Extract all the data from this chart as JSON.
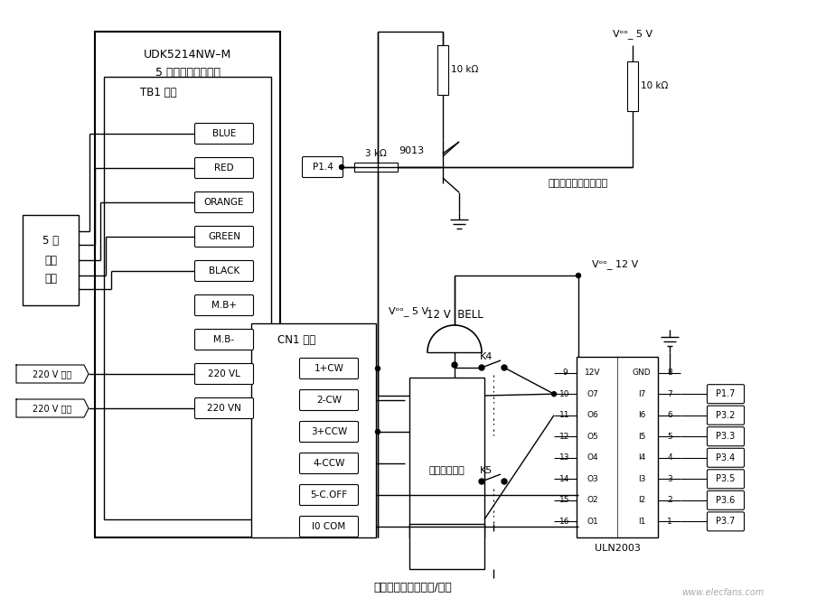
{
  "bg_color": "#ffffff",
  "tb1_pins": [
    "BLUE",
    "RED",
    "ORANGE",
    "GREEN",
    "BLACK",
    "M.B+",
    "M.B-",
    "220 VL",
    "220 VN"
  ],
  "cn1_pins": [
    "1+CW",
    "2-CW",
    "3+CCW",
    "4-CCW",
    "5-C.OFF",
    "I0 COM"
  ],
  "uln_left_pins": [
    "9",
    "10",
    "11",
    "12",
    "13",
    "14",
    "15",
    "16"
  ],
  "uln_left_labels": [
    "12V",
    "O7",
    "O6",
    "O5",
    "O4",
    "O3",
    "O2",
    "O1"
  ],
  "uln_right_pins": [
    "8",
    "7",
    "6",
    "5",
    "4",
    "3",
    "2",
    "1"
  ],
  "uln_right_labels": [
    "GND",
    "I7",
    "I6",
    "I5",
    "I4",
    "I3",
    "I2",
    "I1"
  ],
  "mcu_pins": [
    "P1.7",
    "P3.2",
    "P3.3",
    "P3.4",
    "P3.5",
    "P3.6",
    "P3.7"
  ],
  "note_bottom": "步进电机驱动器工作/停止",
  "note_right": "步进电机驱动脉冲输出",
  "note_direction": "步进电机换向",
  "vcc5_top_label": "Vᵒᵒ_ 5 V",
  "vcc5_cn1_label": "Vᵒᵒ_ 5 V",
  "vcc12_label": "Vᵒᵒ_ 12 V",
  "transistor_label": "9013",
  "r1_label": "10 kΩ",
  "r2_label": "10 kΩ",
  "r3_label": "3 kΩ",
  "p14_label": "P1.4",
  "bell_label": "12 V  BELL",
  "driver_label1": "UDK5214NW–M",
  "driver_label2": "5 相步进电机驱动器",
  "tb1_label": "TB1 插座",
  "cn1_label": "CN1 插座",
  "motor_label": "5 相\n步进\n电机",
  "vac_fire": "220 V 火线",
  "vac_neutral": "220 V 零线",
  "uln_label": "ULN2003",
  "k4_label": "K4",
  "k5_label": "K5",
  "watermark": "www.elecfans.com"
}
